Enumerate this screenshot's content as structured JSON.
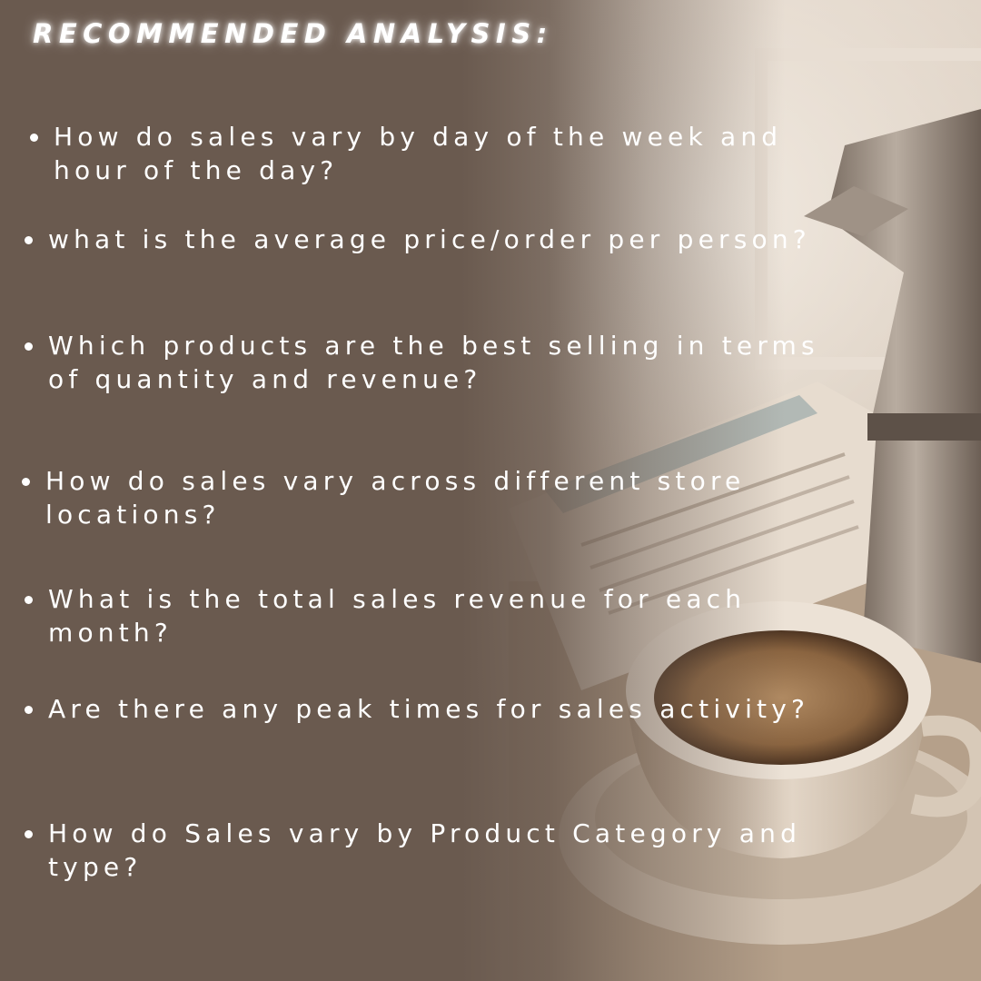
{
  "title": "RECOMMENDED ANALYSIS:",
  "questions": [
    {
      "text": "How do sales vary by day of the week and hour of the day?"
    },
    {
      "text": "what is the average price/order per person?"
    },
    {
      "text": "Which products are the best selling in terms of quantity and revenue?"
    },
    {
      "text": "How do sales vary across different store locations?"
    },
    {
      "text": "What is the total sales revenue for each month?"
    },
    {
      "text": " Are there any peak times for sales activity?"
    },
    {
      "text": "How do Sales vary by Product Category and type?"
    }
  ],
  "colors": {
    "background": "#6a5a4f",
    "text": "#ffffff"
  },
  "icons": {
    "bullet": "bullet-dot"
  }
}
